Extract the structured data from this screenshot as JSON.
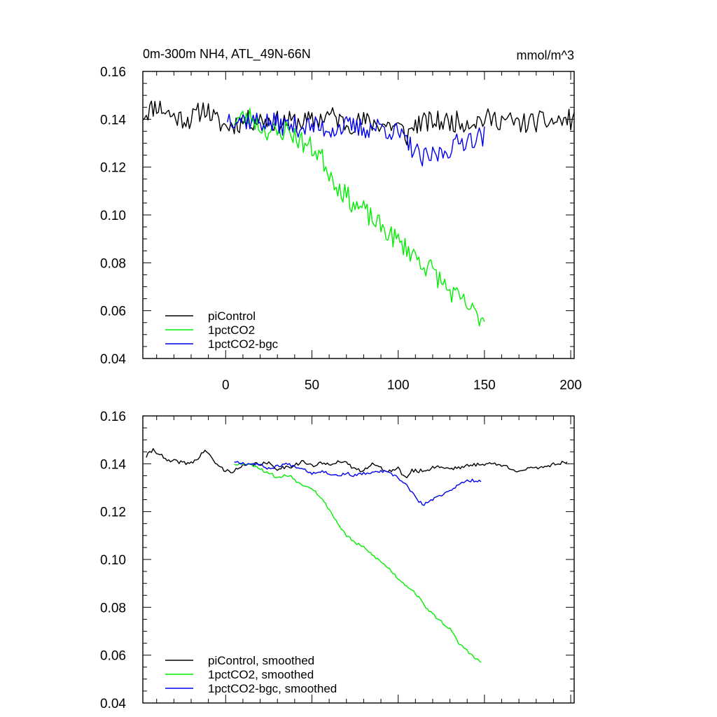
{
  "figure": {
    "title_left": "0m-300m NH4, ATL_49N-66N",
    "title_right": "mmol/m^3"
  },
  "colors": {
    "piControl": "#000000",
    "1pctCO2": "#00ee00",
    "1pctCO2-bgc": "#0000ee"
  },
  "chart_data": [
    {
      "type": "line",
      "title": "0m-300m NH4, ATL_49N-66N",
      "units": "mmol/m^3",
      "xlim": [
        -48,
        202
      ],
      "ylim": [
        0.04,
        0.16
      ],
      "yticks": [
        "0.04",
        "0.06",
        "0.08",
        "0.10",
        "0.12",
        "0.14",
        "0.16"
      ],
      "xticks": [
        "0",
        "50",
        "100",
        "150",
        "200"
      ],
      "show_xtick_labels": true,
      "legend_position": "bottom-left",
      "series": [
        {
          "name": "piControl",
          "color": "#000000",
          "x_start": -48,
          "x_end": 202,
          "anchors": [
            [
              -48,
              0.142
            ],
            [
              -40,
              0.146
            ],
            [
              -30,
              0.141
            ],
            [
              -20,
              0.14
            ],
            [
              -12,
              0.145
            ],
            [
              -5,
              0.139
            ],
            [
              0,
              0.137
            ],
            [
              10,
              0.139
            ],
            [
              20,
              0.14
            ],
            [
              30,
              0.139
            ],
            [
              40,
              0.139
            ],
            [
              50,
              0.139
            ],
            [
              60,
              0.142
            ],
            [
              70,
              0.138
            ],
            [
              80,
              0.139
            ],
            [
              90,
              0.138
            ],
            [
              100,
              0.137
            ],
            [
              105,
              0.133
            ],
            [
              110,
              0.138
            ],
            [
              120,
              0.139
            ],
            [
              130,
              0.139
            ],
            [
              140,
              0.139
            ],
            [
              150,
              0.14
            ],
            [
              160,
              0.14
            ],
            [
              170,
              0.138
            ],
            [
              180,
              0.139
            ],
            [
              190,
              0.139
            ],
            [
              202,
              0.14
            ]
          ],
          "noise": 0.0045,
          "seed": 11
        },
        {
          "name": "1pctCO2",
          "color": "#00ee00",
          "x_start": 5,
          "x_end": 150,
          "anchors": [
            [
              5,
              0.14
            ],
            [
              15,
              0.141
            ],
            [
              20,
              0.137
            ],
            [
              25,
              0.135
            ],
            [
              30,
              0.134
            ],
            [
              35,
              0.136
            ],
            [
              40,
              0.133
            ],
            [
              45,
              0.13
            ],
            [
              50,
              0.128
            ],
            [
              55,
              0.125
            ],
            [
              60,
              0.118
            ],
            [
              65,
              0.112
            ],
            [
              70,
              0.108
            ],
            [
              75,
              0.104
            ],
            [
              80,
              0.102
            ],
            [
              85,
              0.098
            ],
            [
              90,
              0.095
            ],
            [
              95,
              0.092
            ],
            [
              100,
              0.089
            ],
            [
              105,
              0.086
            ],
            [
              110,
              0.083
            ],
            [
              115,
              0.079
            ],
            [
              120,
              0.077
            ],
            [
              125,
              0.072
            ],
            [
              130,
              0.068
            ],
            [
              135,
              0.065
            ],
            [
              140,
              0.062
            ],
            [
              145,
              0.058
            ],
            [
              150,
              0.057
            ]
          ],
          "noise": 0.0045,
          "seed": 23
        },
        {
          "name": "1pctCO2-bgc",
          "color": "#0000ee",
          "x_start": 1,
          "x_end": 150,
          "anchors": [
            [
              1,
              0.141
            ],
            [
              10,
              0.14
            ],
            [
              20,
              0.139
            ],
            [
              30,
              0.138
            ],
            [
              40,
              0.137
            ],
            [
              50,
              0.137
            ],
            [
              60,
              0.136
            ],
            [
              70,
              0.137
            ],
            [
              80,
              0.136
            ],
            [
              90,
              0.137
            ],
            [
              100,
              0.134
            ],
            [
              105,
              0.13
            ],
            [
              110,
              0.127
            ],
            [
              113,
              0.123
            ],
            [
              118,
              0.124
            ],
            [
              125,
              0.126
            ],
            [
              130,
              0.128
            ],
            [
              140,
              0.132
            ],
            [
              150,
              0.133
            ]
          ],
          "noise": 0.0045,
          "seed": 37
        }
      ]
    },
    {
      "type": "line",
      "title": "",
      "xlim": [
        -48,
        202
      ],
      "ylim": [
        0.04,
        0.16
      ],
      "yticks": [
        "0.04",
        "0.06",
        "0.08",
        "0.10",
        "0.12",
        "0.14",
        "0.16"
      ],
      "xticks": [
        "0",
        "50",
        "100",
        "150",
        "200"
      ],
      "show_xtick_labels": false,
      "legend_position": "bottom-left",
      "series": [
        {
          "name": "piControl, smoothed",
          "color": "#000000",
          "x_start": -46,
          "x_end": 198,
          "anchors": [
            [
              -46,
              0.143
            ],
            [
              -42,
              0.146
            ],
            [
              -38,
              0.144
            ],
            [
              -34,
              0.141
            ],
            [
              -28,
              0.141
            ],
            [
              -22,
              0.14
            ],
            [
              -16,
              0.142
            ],
            [
              -12,
              0.146
            ],
            [
              -8,
              0.142
            ],
            [
              -4,
              0.139
            ],
            [
              0,
              0.137
            ],
            [
              5,
              0.137
            ],
            [
              10,
              0.139
            ],
            [
              18,
              0.14
            ],
            [
              25,
              0.14
            ],
            [
              30,
              0.138
            ],
            [
              38,
              0.139
            ],
            [
              45,
              0.141
            ],
            [
              50,
              0.139
            ],
            [
              55,
              0.14
            ],
            [
              60,
              0.14
            ],
            [
              65,
              0.141
            ],
            [
              70,
              0.14
            ],
            [
              75,
              0.138
            ],
            [
              78,
              0.137
            ],
            [
              85,
              0.14
            ],
            [
              90,
              0.138
            ],
            [
              95,
              0.137
            ],
            [
              100,
              0.138
            ],
            [
              104,
              0.134
            ],
            [
              108,
              0.137
            ],
            [
              115,
              0.137
            ],
            [
              122,
              0.139
            ],
            [
              130,
              0.138
            ],
            [
              140,
              0.139
            ],
            [
              148,
              0.14
            ],
            [
              155,
              0.14
            ],
            [
              162,
              0.139
            ],
            [
              170,
              0.137
            ],
            [
              178,
              0.138
            ],
            [
              185,
              0.139
            ],
            [
              192,
              0.14
            ],
            [
              198,
              0.141
            ]
          ],
          "noise": 0.0008,
          "seed": 41
        },
        {
          "name": "1pctCO2, smoothed",
          "color": "#00ee00",
          "x_start": 5,
          "x_end": 148,
          "anchors": [
            [
              5,
              0.14
            ],
            [
              12,
              0.14
            ],
            [
              18,
              0.139
            ],
            [
              22,
              0.137
            ],
            [
              26,
              0.136
            ],
            [
              30,
              0.134
            ],
            [
              34,
              0.135
            ],
            [
              38,
              0.135
            ],
            [
              42,
              0.132
            ],
            [
              46,
              0.131
            ],
            [
              50,
              0.13
            ],
            [
              55,
              0.126
            ],
            [
              60,
              0.121
            ],
            [
              65,
              0.115
            ],
            [
              70,
              0.11
            ],
            [
              75,
              0.107
            ],
            [
              80,
              0.105
            ],
            [
              85,
              0.102
            ],
            [
              90,
              0.099
            ],
            [
              95,
              0.096
            ],
            [
              100,
              0.092
            ],
            [
              105,
              0.089
            ],
            [
              110,
              0.086
            ],
            [
              115,
              0.081
            ],
            [
              120,
              0.077
            ],
            [
              125,
              0.074
            ],
            [
              130,
              0.071
            ],
            [
              135,
              0.065
            ],
            [
              140,
              0.062
            ],
            [
              144,
              0.059
            ],
            [
              148,
              0.057
            ]
          ],
          "noise": 0.0006,
          "seed": 53
        },
        {
          "name": "1pctCO2-bgc, smoothed",
          "color": "#0000ee",
          "x_start": 5,
          "x_end": 148,
          "anchors": [
            [
              5,
              0.141
            ],
            [
              12,
              0.14
            ],
            [
              18,
              0.14
            ],
            [
              25,
              0.138
            ],
            [
              30,
              0.139
            ],
            [
              35,
              0.14
            ],
            [
              40,
              0.139
            ],
            [
              45,
              0.138
            ],
            [
              50,
              0.136
            ],
            [
              55,
              0.137
            ],
            [
              60,
              0.136
            ],
            [
              65,
              0.135
            ],
            [
              70,
              0.136
            ],
            [
              75,
              0.135
            ],
            [
              80,
              0.136
            ],
            [
              85,
              0.136
            ],
            [
              90,
              0.137
            ],
            [
              95,
              0.136
            ],
            [
              100,
              0.134
            ],
            [
              105,
              0.131
            ],
            [
              108,
              0.128
            ],
            [
              112,
              0.124
            ],
            [
              115,
              0.123
            ],
            [
              120,
              0.125
            ],
            [
              125,
              0.127
            ],
            [
              130,
              0.129
            ],
            [
              135,
              0.131
            ],
            [
              140,
              0.133
            ],
            [
              148,
              0.133
            ]
          ],
          "noise": 0.0006,
          "seed": 67
        }
      ]
    }
  ]
}
